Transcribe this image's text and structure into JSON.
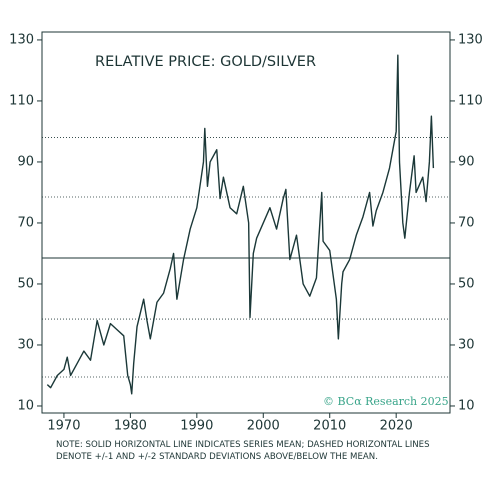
{
  "chart_data": {
    "type": "line",
    "title": "RELATIVE PRICE: GOLD/SILVER",
    "notes": [
      "NOTE: SOLID HORIZONTAL LINE INDICATES SERIES MEAN; DASHED HORIZONTAL LINES",
      "DENOTE +/-1 AND +/-2 STANDARD DEVIATIONS ABOVE/BELOW THE MEAN."
    ],
    "watermark": "© BCα Research 2025",
    "color": "#1b3838",
    "x": [
      1967.5,
      1968,
      1969,
      1970,
      1970.5,
      1971,
      1972,
      1973,
      1974,
      1975,
      1976,
      1977,
      1978,
      1979,
      1979.6,
      1980,
      1980.2,
      1980.5,
      1981,
      1982,
      1982.5,
      1983,
      1984,
      1985,
      1986,
      1986.5,
      1987,
      1988,
      1989,
      1990,
      1991,
      1991.2,
      1991.6,
      1992,
      1993,
      1993.5,
      1994,
      1995,
      1996,
      1997,
      1997.8,
      1998,
      1998.5,
      1999,
      2000,
      2001,
      2002,
      2003,
      2003.4,
      2004,
      2005,
      2006,
      2007,
      2008,
      2008.8,
      2009,
      2010,
      2011,
      2011.3,
      2011.8,
      2012,
      2013,
      2014,
      2015,
      2016,
      2016.5,
      2017,
      2018,
      2019,
      2020,
      2020.25,
      2020.5,
      2021,
      2021.3,
      2022,
      2022.7,
      2023,
      2024,
      2024.5,
      2025,
      2025.3,
      2025.6
    ],
    "values": [
      17,
      16,
      20,
      22,
      26,
      20,
      24,
      28,
      25,
      38,
      30,
      37,
      35,
      33,
      20,
      17,
      14,
      24,
      36,
      45,
      38,
      32,
      44,
      47,
      55,
      60,
      45,
      58,
      68,
      75,
      90,
      101,
      82,
      90,
      94,
      78,
      85,
      75,
      73,
      82,
      70,
      39,
      60,
      65,
      70,
      75,
      68,
      78,
      81,
      58,
      66,
      50,
      46,
      52,
      80,
      64,
      61,
      45,
      32,
      50,
      54,
      58,
      66,
      72,
      80,
      69,
      74,
      80,
      88,
      100,
      125,
      90,
      70,
      65,
      80,
      92,
      80,
      85,
      77,
      90,
      105,
      88
    ],
    "mean": 58.5,
    "std_lines": [
      19.5,
      38.5,
      78.5,
      98
    ],
    "xlim": [
      1966.7,
      2028.1
    ],
    "ylim": [
      7.7,
      132.6
    ],
    "xticks": [
      1970,
      1980,
      1990,
      2000,
      2010,
      2020
    ],
    "yticks": [
      10,
      30,
      50,
      70,
      90,
      110,
      130
    ]
  }
}
